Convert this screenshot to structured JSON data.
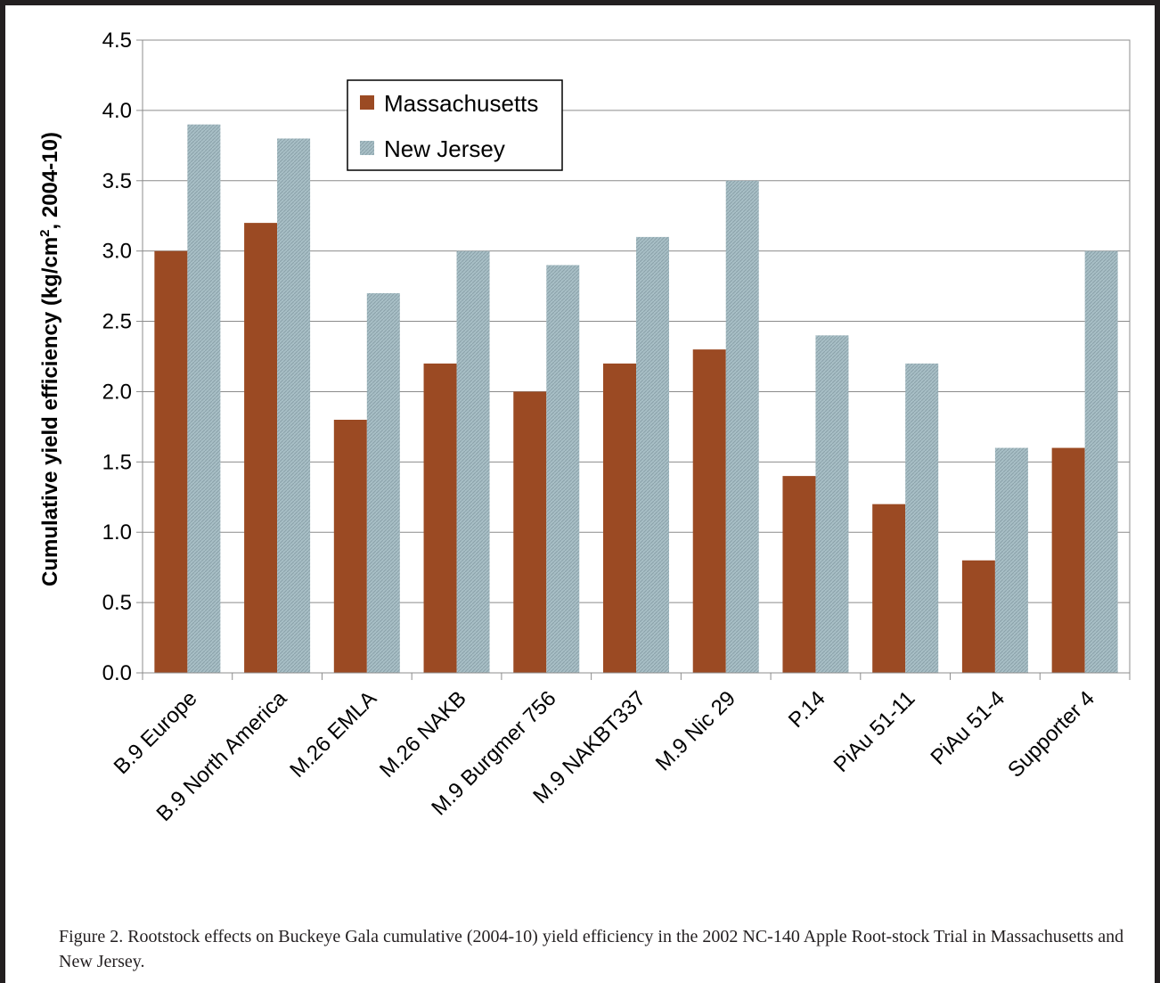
{
  "chart_data": {
    "type": "bar",
    "ylabel_main": "Cumulative yield efficiency (kg/cm",
    "ylabel_sup": "2",
    "ylabel_tail": ", 2004-10)",
    "xlabel": "",
    "ylim": [
      0,
      4.5
    ],
    "yticks": [
      "0.0",
      "0.5",
      "1.0",
      "1.5",
      "2.0",
      "2.5",
      "3.0",
      "3.5",
      "4.0",
      "4.5"
    ],
    "grid": true,
    "legend_position": "top-center",
    "categories": [
      "B.9 Europe",
      "B.9 North America",
      "M.26 EMLA",
      "M.26 NAKB",
      "M.9 Burgmer 756",
      "M.9 NAKBT337",
      "M.9 Nic 29",
      "P.14",
      "PiAu 51-11",
      "PiAu 51-4",
      "Supporter 4"
    ],
    "series": [
      {
        "name": "Massachusetts",
        "color": "#9b4a23",
        "values": [
          3.0,
          3.2,
          1.8,
          2.2,
          2.0,
          2.2,
          2.3,
          1.4,
          1.2,
          0.8,
          1.6
        ]
      },
      {
        "name": "New Jersey",
        "color": "#a6bcc3",
        "values": [
          3.9,
          3.8,
          2.7,
          3.0,
          2.9,
          3.1,
          3.5,
          2.4,
          2.2,
          1.6,
          3.0
        ]
      }
    ]
  },
  "caption": "Figure 2.  Rootstock effects on Buckeye Gala cumulative (2004-10) yield efficiency in the 2002 NC-140 Apple Root-stock Trial in Massachusetts and New Jersey."
}
